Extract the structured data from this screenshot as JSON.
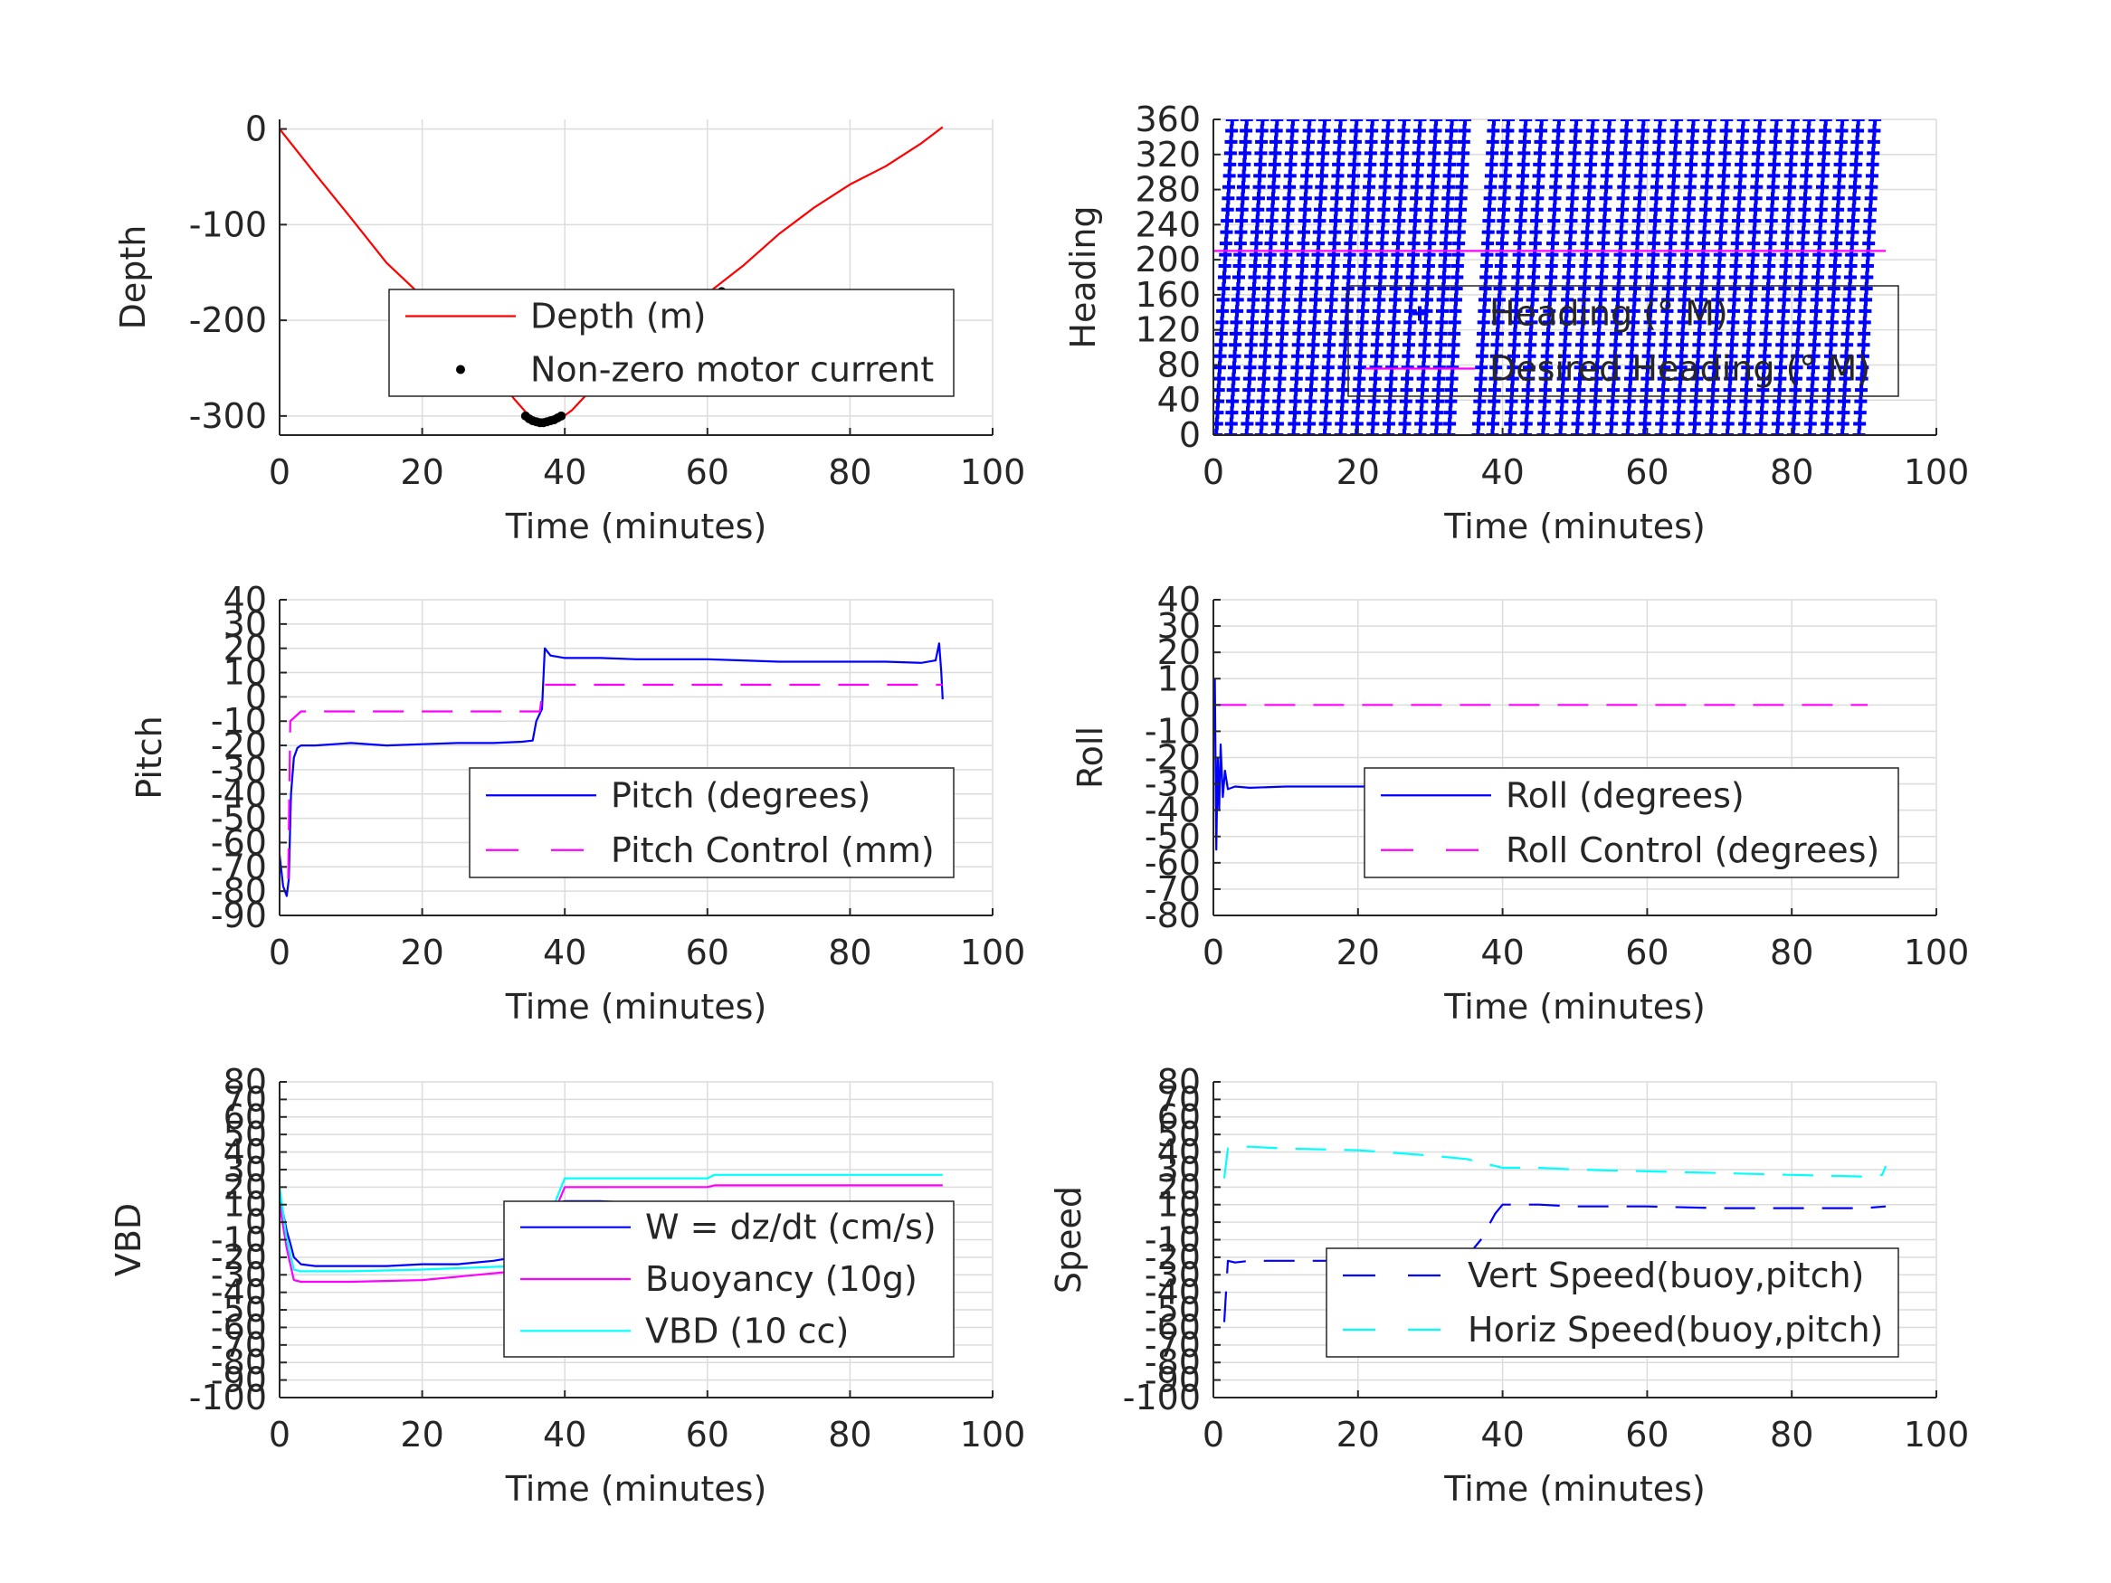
{
  "figure": {
    "panels_count": 6
  },
  "chart_data": [
    {
      "id": "depth",
      "type": "line",
      "xlabel": "Time (minutes)",
      "ylabel": "Depth",
      "xlim": [
        0,
        100
      ],
      "ylim": [
        -320,
        10
      ],
      "xticks": [
        0,
        20,
        40,
        60,
        80,
        100
      ],
      "yticks": [
        0,
        -100,
        -200,
        -300
      ],
      "grid": true,
      "legend_position": "center-right",
      "series": [
        {
          "name": "Depth (m)",
          "style": "solid",
          "color": "#ff0000",
          "x": [
            0,
            5,
            10,
            15,
            20,
            25,
            30,
            33,
            35,
            37,
            39,
            41,
            45,
            50,
            55,
            60,
            65,
            70,
            75,
            80,
            85,
            90,
            93
          ],
          "y": [
            0,
            -47,
            -93,
            -140,
            -175,
            -212,
            -255,
            -283,
            -300,
            -307,
            -305,
            -294,
            -262,
            -222,
            -188,
            -172,
            -143,
            -110,
            -82,
            -58,
            -39,
            -15,
            2
          ]
        },
        {
          "name": "Non-zero motor current",
          "style": "dots",
          "color": "#000000",
          "x": [
            34.5,
            35,
            35.5,
            36,
            36.5,
            37,
            37.5,
            38,
            38.5,
            39,
            39.5,
            60.5,
            61,
            61.5,
            62
          ],
          "y": [
            -300,
            -303,
            -305,
            -306,
            -307,
            -307,
            -306,
            -305,
            -304,
            -302,
            -300,
            -176,
            -174,
            -172,
            -170
          ]
        }
      ]
    },
    {
      "id": "heading",
      "type": "scatter",
      "xlabel": "Time (minutes)",
      "ylabel": "Heading",
      "xlim": [
        0,
        100
      ],
      "ylim": [
        0,
        360
      ],
      "xticks": [
        0,
        20,
        40,
        60,
        80,
        100
      ],
      "yticks": [
        0,
        40,
        80,
        120,
        160,
        200,
        240,
        280,
        320,
        360
      ],
      "grid": true,
      "legend_position": "center-right",
      "series": [
        {
          "name": "Heading (° M)",
          "style": "plus",
          "color": "#0000ff",
          "segments_start_x": [
            0.4,
            2.4,
            4.6,
            6.6,
            8.8,
            11.1,
            13.2,
            15.4,
            17.6,
            19.8,
            22.0,
            24.2,
            26.4,
            28.6,
            30.8,
            32.6,
            36.6,
            38.6,
            41.0,
            43.2,
            45.6,
            48.0,
            50.3,
            52.6,
            55.0,
            57.3,
            59.6,
            61.9,
            64.2,
            66.5,
            68.8,
            71.1,
            73.4,
            75.7,
            78.0,
            80.2,
            82.5,
            84.8,
            87.0,
            89.3
          ],
          "segment_span_x": 2.2,
          "segment_range_y": [
            0,
            360
          ]
        },
        {
          "name": "Desired Heading (° M)",
          "style": "solid",
          "color": "#ff00ff",
          "x": [
            0,
            93
          ],
          "y": [
            210,
            210
          ]
        }
      ]
    },
    {
      "id": "pitch",
      "type": "line",
      "xlabel": "Time (minutes)",
      "ylabel": "Pitch",
      "xlim": [
        0,
        100
      ],
      "ylim": [
        -90,
        40
      ],
      "xticks": [
        0,
        20,
        40,
        60,
        80,
        100
      ],
      "yticks": [
        40,
        30,
        20,
        10,
        0,
        -10,
        -20,
        -30,
        -40,
        -50,
        -60,
        -70,
        -80,
        -90
      ],
      "grid": true,
      "legend_position": "bottom-right",
      "series": [
        {
          "name": "Pitch (degrees)",
          "style": "solid",
          "color": "#0000ff",
          "x": [
            0,
            0.5,
            1,
            1.3,
            1.6,
            2,
            2.5,
            3,
            5,
            10,
            15,
            20,
            25,
            30,
            34,
            35.5,
            36,
            36.8,
            37.2,
            38,
            40,
            45,
            50,
            55,
            60,
            65,
            70,
            75,
            80,
            85,
            90,
            92,
            92.5,
            92.8,
            93
          ],
          "y": [
            -65,
            -78,
            -82,
            -75,
            -40,
            -25,
            -21,
            -20,
            -20,
            -19,
            -20,
            -19.5,
            -19,
            -19,
            -18.5,
            -18,
            -10,
            -5,
            20,
            17,
            16,
            16,
            15.5,
            15.5,
            15.5,
            15,
            14.5,
            14.5,
            14.5,
            14.5,
            14,
            15,
            22,
            10,
            -1
          ]
        },
        {
          "name": "Pitch Control (mm)",
          "style": "dashed",
          "color": "#ff00ff",
          "x": [
            1.2,
            1.5,
            3,
            10,
            20,
            30,
            36.5,
            37,
            40,
            60,
            80,
            93
          ],
          "y": [
            -75,
            -10,
            -6,
            -6,
            -6,
            -6,
            -6,
            5,
            5,
            5,
            5,
            5
          ]
        }
      ]
    },
    {
      "id": "roll",
      "type": "line",
      "xlabel": "Time (minutes)",
      "ylabel": "Roll",
      "xlim": [
        0,
        100
      ],
      "ylim": [
        -80,
        40
      ],
      "xticks": [
        0,
        20,
        40,
        60,
        80,
        100
      ],
      "yticks": [
        40,
        30,
        20,
        10,
        0,
        -10,
        -20,
        -30,
        -40,
        -50,
        -60,
        -70,
        -80
      ],
      "grid": true,
      "legend_position": "bottom-right",
      "series": [
        {
          "name": "Roll (degrees)",
          "style": "solid",
          "color": "#0000ff",
          "x": [
            0.2,
            0.4,
            0.6,
            0.8,
            1.0,
            1.3,
            1.6,
            2.0,
            3,
            5,
            10,
            20,
            30,
            38,
            40,
            50,
            60,
            70,
            80,
            90,
            92,
            93,
            93.3,
            93.6
          ],
          "y": [
            10,
            -55,
            -20,
            -40,
            -15,
            -35,
            -25,
            -32,
            -31,
            -31.5,
            -31,
            -31,
            -31,
            -31.5,
            -29,
            -29,
            -29,
            -29,
            -28.5,
            -28.5,
            -28,
            -27,
            -30,
            -55
          ]
        },
        {
          "name": "Roll Control (degrees)",
          "style": "dashed",
          "color": "#ff00ff",
          "x": [
            0.3,
            90.5
          ],
          "y": [
            0,
            0
          ]
        }
      ]
    },
    {
      "id": "vbd",
      "type": "line",
      "xlabel": "Time (minutes)",
      "ylabel": "VBD",
      "xlim": [
        0,
        100
      ],
      "ylim": [
        -100,
        80
      ],
      "xticks": [
        0,
        20,
        40,
        60,
        80,
        100
      ],
      "yticks": [
        80,
        70,
        60,
        50,
        40,
        30,
        20,
        10,
        0,
        -10,
        -20,
        -30,
        -40,
        -50,
        -60,
        -70,
        -80,
        -90,
        -100
      ],
      "grid": true,
      "legend_position": "center-right",
      "series": [
        {
          "name": "W = dz/dt (cm/s)",
          "style": "solid",
          "color": "#0000ff",
          "x": [
            0,
            0.5,
            1,
            1.5,
            2,
            3,
            5,
            10,
            15,
            20,
            25,
            30,
            33,
            35,
            37,
            39,
            40,
            45,
            50,
            55,
            60,
            65,
            70,
            75,
            80,
            85,
            90,
            92.8,
            93
          ],
          "y": [
            16,
            5,
            -5,
            -12,
            -20,
            -24,
            -25,
            -25,
            -25,
            -24,
            -24,
            -22,
            -20,
            -18,
            -2,
            11,
            12,
            12,
            11,
            10,
            10,
            9,
            9,
            9,
            9,
            9,
            9,
            9,
            -3
          ]
        },
        {
          "name": "Buoyancy (10g)",
          "style": "solid",
          "color": "#ff00ff",
          "x": [
            0,
            1,
            2,
            3,
            10,
            20,
            33,
            35,
            40,
            60,
            61,
            70,
            80,
            93
          ],
          "y": [
            10,
            -15,
            -33,
            -34,
            -34,
            -33,
            -28,
            -28,
            20,
            20,
            21,
            21,
            21,
            21
          ]
        },
        {
          "name": "VBD (10 cc)",
          "style": "solid",
          "color": "#00ffff",
          "x": [
            0,
            1,
            2,
            3,
            10,
            20,
            33,
            35,
            40,
            60,
            61,
            70,
            80,
            93
          ],
          "y": [
            20,
            -10,
            -27,
            -28,
            -28,
            -27,
            -25,
            -25,
            25,
            25,
            27,
            27,
            27,
            27
          ]
        }
      ]
    },
    {
      "id": "speed",
      "type": "line",
      "xlabel": "Time (minutes)",
      "ylabel": "Speed",
      "xlim": [
        0,
        100
      ],
      "ylim": [
        -100,
        80
      ],
      "xticks": [
        0,
        20,
        40,
        60,
        80,
        100
      ],
      "yticks": [
        80,
        70,
        60,
        50,
        40,
        30,
        20,
        10,
        0,
        -10,
        -20,
        -30,
        -40,
        -50,
        -60,
        -70,
        -80,
        -90,
        -100
      ],
      "grid": true,
      "legend_position": "bottom-right",
      "series": [
        {
          "name": "Vert Speed(buoy,pitch)",
          "style": "dashed",
          "color": "#0000ff",
          "x": [
            1.5,
            2,
            3,
            5,
            10,
            20,
            30,
            35,
            37,
            39,
            40,
            45,
            50,
            60,
            70,
            80,
            90,
            93
          ],
          "y": [
            -57,
            -22,
            -23,
            -22,
            -22,
            -22,
            -21,
            -20,
            -10,
            5,
            10,
            10,
            9,
            9,
            8,
            8,
            8,
            9
          ]
        },
        {
          "name": "Horiz Speed(buoy,pitch)",
          "style": "dashed",
          "color": "#00ffff",
          "x": [
            1.5,
            2,
            3,
            5,
            10,
            20,
            30,
            35,
            40,
            45,
            50,
            60,
            70,
            80,
            90,
            92.5,
            93
          ],
          "y": [
            25,
            42,
            43,
            43,
            42,
            41,
            38,
            36,
            31,
            31,
            30,
            29,
            28,
            27,
            26,
            27,
            32
          ]
        }
      ]
    }
  ]
}
